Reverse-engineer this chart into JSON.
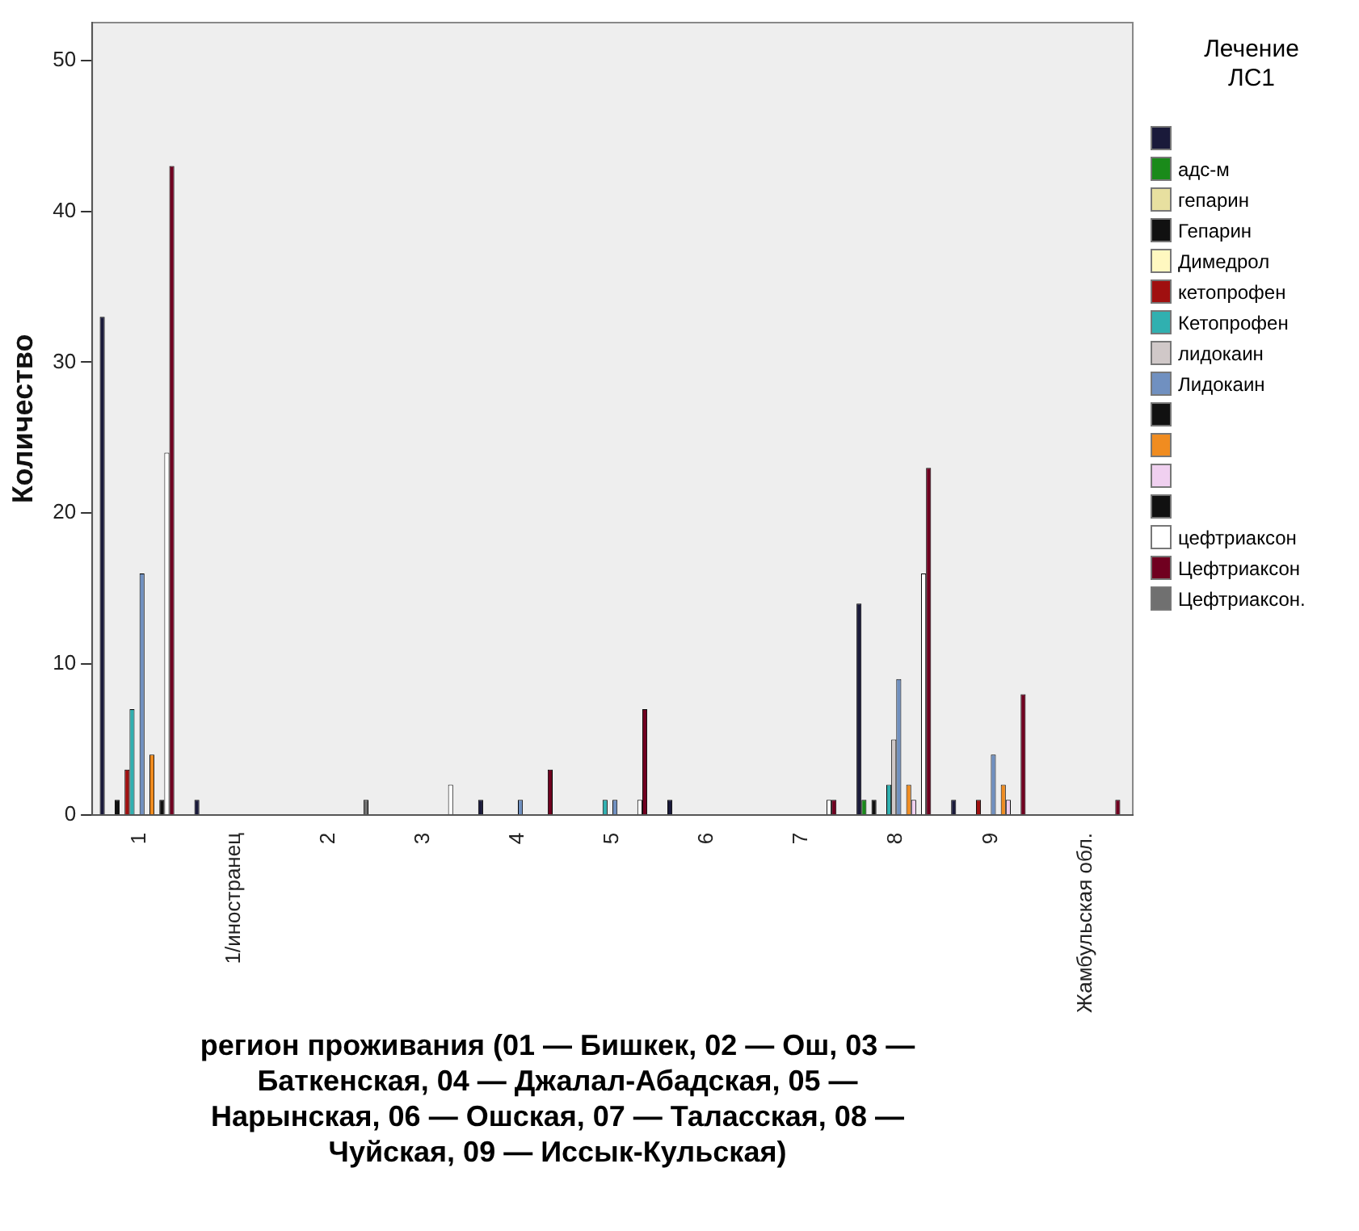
{
  "chart_data": {
    "type": "bar",
    "xlabel": "регион проживания (01 — Бишкек, 02 — Ош, 03 — Баткенская, 04 — Джалал-Абадская, 05 — Нарынская, 06 — Ошская, 07 — Таласская, 08 — Чуйская, 09 — Иссык-Кульская)",
    "ylabel": "Количество",
    "legend_title": "Лечение ЛС1",
    "categories": [
      "1",
      "1/иностранец",
      "2",
      "3",
      "4",
      "5",
      "6",
      "7",
      "8",
      "9",
      "Жамбульская обл."
    ],
    "ylim": [
      0,
      52.5
    ],
    "yticks": [
      0,
      10,
      20,
      30,
      40,
      50
    ],
    "grid": false,
    "legend": "right",
    "series": [
      {
        "color": "#1a1a3a",
        "values": [
          33,
          1,
          null,
          null,
          1,
          null,
          1,
          null,
          14,
          1,
          null
        ]
      },
      {
        "name": "адс-м",
        "color": "#1a8a1a",
        "values": [
          null,
          null,
          null,
          null,
          null,
          null,
          null,
          null,
          1,
          null,
          null
        ]
      },
      {
        "name": "гепарин",
        "color": "#e8e0a0",
        "values": [
          null,
          null,
          null,
          null,
          null,
          null,
          null,
          null,
          null,
          null,
          null
        ]
      },
      {
        "name": "Гепарин",
        "color": "#111111",
        "values": [
          1,
          null,
          null,
          null,
          null,
          null,
          null,
          null,
          1,
          null,
          null
        ]
      },
      {
        "name": "Димедрол",
        "color": "#fff8c0",
        "values": [
          null,
          null,
          null,
          null,
          null,
          null,
          null,
          null,
          null,
          null,
          null
        ]
      },
      {
        "name": "кетопрофен",
        "color": "#a01010",
        "values": [
          3,
          null,
          null,
          null,
          null,
          null,
          null,
          null,
          null,
          1,
          null
        ]
      },
      {
        "name": "Кетопрофен",
        "color": "#30b0b0",
        "values": [
          7,
          null,
          null,
          null,
          null,
          1,
          null,
          null,
          2,
          null,
          null
        ]
      },
      {
        "name": "лидокаин",
        "color": "#d0c8c8",
        "values": [
          null,
          null,
          null,
          null,
          null,
          null,
          null,
          null,
          5,
          null,
          null
        ]
      },
      {
        "name": "Лидокаин",
        "color": "#7090c0",
        "values": [
          16,
          null,
          null,
          null,
          1,
          1,
          null,
          null,
          9,
          4,
          null
        ]
      },
      {
        "color": "#111111",
        "values": [
          null,
          null,
          null,
          null,
          null,
          null,
          null,
          null,
          null,
          null,
          null
        ]
      },
      {
        "color": "#f08c20",
        "values": [
          4,
          null,
          null,
          null,
          null,
          null,
          null,
          null,
          2,
          2,
          null
        ]
      },
      {
        "color": "#f0d0f0",
        "values": [
          null,
          null,
          null,
          null,
          null,
          null,
          null,
          null,
          1,
          1,
          null
        ]
      },
      {
        "color": "#111111",
        "values": [
          1,
          null,
          null,
          null,
          null,
          null,
          null,
          null,
          null,
          null,
          null
        ]
      },
      {
        "name": "цефтриаксон",
        "color": "#ffffff",
        "values": [
          24,
          null,
          null,
          2,
          null,
          1,
          null,
          1,
          16,
          null,
          null
        ]
      },
      {
        "name": "Цефтриаксон",
        "color": "#700020",
        "values": [
          43,
          null,
          null,
          null,
          3,
          7,
          null,
          1,
          23,
          8,
          1
        ]
      },
      {
        "name": "Цефтриаксон.",
        "color": "#707070",
        "values": [
          null,
          null,
          1,
          null,
          null,
          null,
          null,
          null,
          null,
          null,
          null
        ]
      }
    ]
  }
}
